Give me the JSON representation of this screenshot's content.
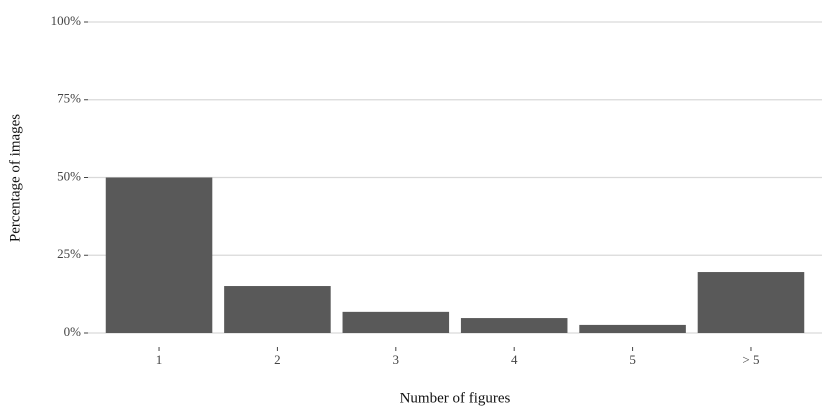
{
  "chart_data": {
    "type": "bar",
    "x_label": "Number of figures",
    "y_label": "Percentage of images",
    "categories": [
      "1",
      "2",
      "3",
      "4",
      "5",
      "> 5"
    ],
    "values": [
      50,
      15.1,
      6.8,
      4.8,
      2.6,
      19.6
    ],
    "color": "#595959",
    "ylim": [
      0,
      100
    ],
    "yticks": [
      {
        "value": 0,
        "label": "0%"
      },
      {
        "value": 25,
        "label": "25%"
      },
      {
        "value": 50,
        "label": "50%"
      },
      {
        "value": 75,
        "label": "75%"
      },
      {
        "value": 100,
        "label": "100%"
      }
    ],
    "grid": true
  }
}
